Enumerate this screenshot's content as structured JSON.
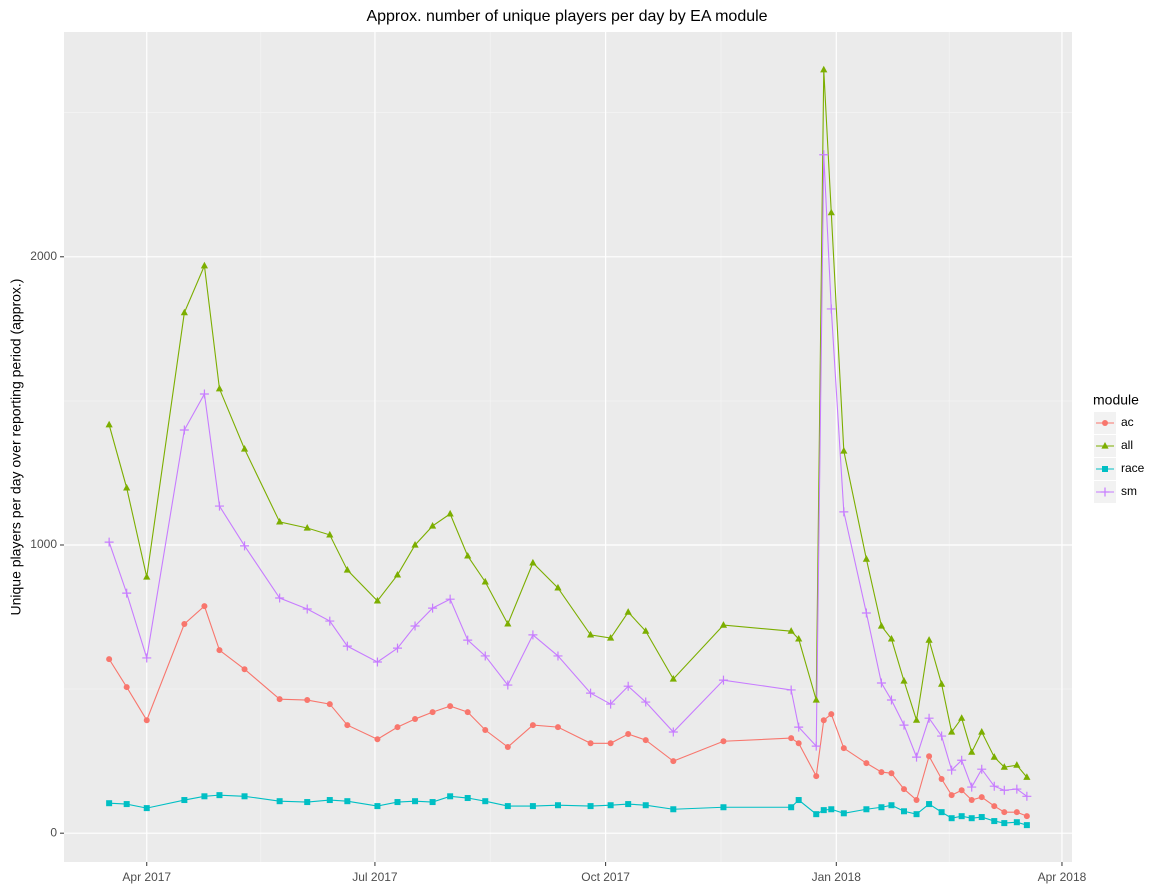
{
  "chart_data": {
    "type": "line",
    "title": "Approx. number of unique players per day by EA module",
    "ylabel": "Unique players per day over reporting period (approx.)",
    "legend_title": "module",
    "legend": "right",
    "grid": true,
    "x": [
      "2017-03-17",
      "2017-03-24",
      "2017-04-01",
      "2017-04-16",
      "2017-04-24",
      "2017-04-30",
      "2017-05-10",
      "2017-05-24",
      "2017-06-04",
      "2017-06-13",
      "2017-06-20",
      "2017-07-02",
      "2017-07-10",
      "2017-07-17",
      "2017-07-24",
      "2017-07-31",
      "2017-08-07",
      "2017-08-14",
      "2017-08-23",
      "2017-09-02",
      "2017-09-12",
      "2017-09-25",
      "2017-10-03",
      "2017-10-10",
      "2017-10-17",
      "2017-10-28",
      "2017-11-17",
      "2017-12-14",
      "2017-12-17",
      "2017-12-24",
      "2017-12-27",
      "2017-12-30",
      "2018-01-04",
      "2018-01-13",
      "2018-01-19",
      "2018-01-23",
      "2018-01-28",
      "2018-02-02",
      "2018-02-07",
      "2018-02-12",
      "2018-02-16",
      "2018-02-20",
      "2018-02-24",
      "2018-02-28",
      "2018-03-05",
      "2018-03-09",
      "2018-03-14",
      "2018-03-18"
    ],
    "xlim": [
      "2017-02-27",
      "2018-04-05"
    ],
    "xticks": [
      {
        "value": "2017-04-01",
        "label": "Apr 2017"
      },
      {
        "value": "2017-07-01",
        "label": "Jul 2017"
      },
      {
        "value": "2017-10-01",
        "label": "Oct 2017"
      },
      {
        "value": "2018-01-01",
        "label": "Jan 2018"
      },
      {
        "value": "2018-04-01",
        "label": "Apr 2018"
      }
    ],
    "ylim": [
      -100,
      2780
    ],
    "yticks": [
      0,
      1000,
      2000
    ],
    "series": [
      {
        "name": "ac",
        "color": "#F8766D",
        "shape": "circle",
        "values": [
          604,
          507,
          392,
          726,
          788,
          635,
          569,
          465,
          462,
          448,
          375,
          326,
          368,
          396,
          420,
          441,
          420,
          358,
          299,
          375,
          368,
          312,
          312,
          344,
          323,
          250,
          319,
          330,
          312,
          198,
          392,
          413,
          295,
          243,
          212,
          208,
          153,
          115,
          267,
          188,
          132,
          149,
          115,
          125,
          94,
          73,
          73,
          59
        ]
      },
      {
        "name": "all",
        "color": "#7CAE00",
        "shape": "triangle",
        "values": [
          1417,
          1198,
          889,
          1806,
          1969,
          1542,
          1333,
          1080,
          1059,
          1035,
          913,
          806,
          896,
          1000,
          1066,
          1108,
          962,
          872,
          726,
          938,
          851,
          688,
          677,
          767,
          701,
          535,
          722,
          701,
          674,
          462,
          2649,
          2153,
          1326,
          951,
          719,
          674,
          528,
          392,
          670,
          517,
          351,
          399,
          281,
          351,
          264,
          229,
          236,
          194
        ]
      },
      {
        "name": "race",
        "color": "#00BFC4",
        "shape": "square",
        "values": [
          104,
          101,
          87,
          115,
          128,
          132,
          128,
          111,
          108,
          115,
          111,
          94,
          108,
          111,
          108,
          128,
          122,
          111,
          94,
          94,
          97,
          94,
          97,
          101,
          97,
          83,
          90,
          90,
          115,
          66,
          80,
          83,
          69,
          83,
          90,
          97,
          76,
          66,
          101,
          73,
          52,
          59,
          52,
          56,
          42,
          35,
          38,
          28
        ]
      },
      {
        "name": "sm",
        "color": "#C77CFF",
        "shape": "plus",
        "values": [
          1010,
          833,
          608,
          1399,
          1524,
          1135,
          997,
          816,
          778,
          736,
          649,
          594,
          642,
          719,
          781,
          812,
          670,
          615,
          514,
          688,
          615,
          486,
          448,
          510,
          455,
          351,
          531,
          497,
          368,
          302,
          2354,
          1819,
          1115,
          764,
          521,
          462,
          375,
          264,
          399,
          337,
          219,
          253,
          160,
          222,
          163,
          149,
          153,
          128
        ]
      }
    ]
  }
}
